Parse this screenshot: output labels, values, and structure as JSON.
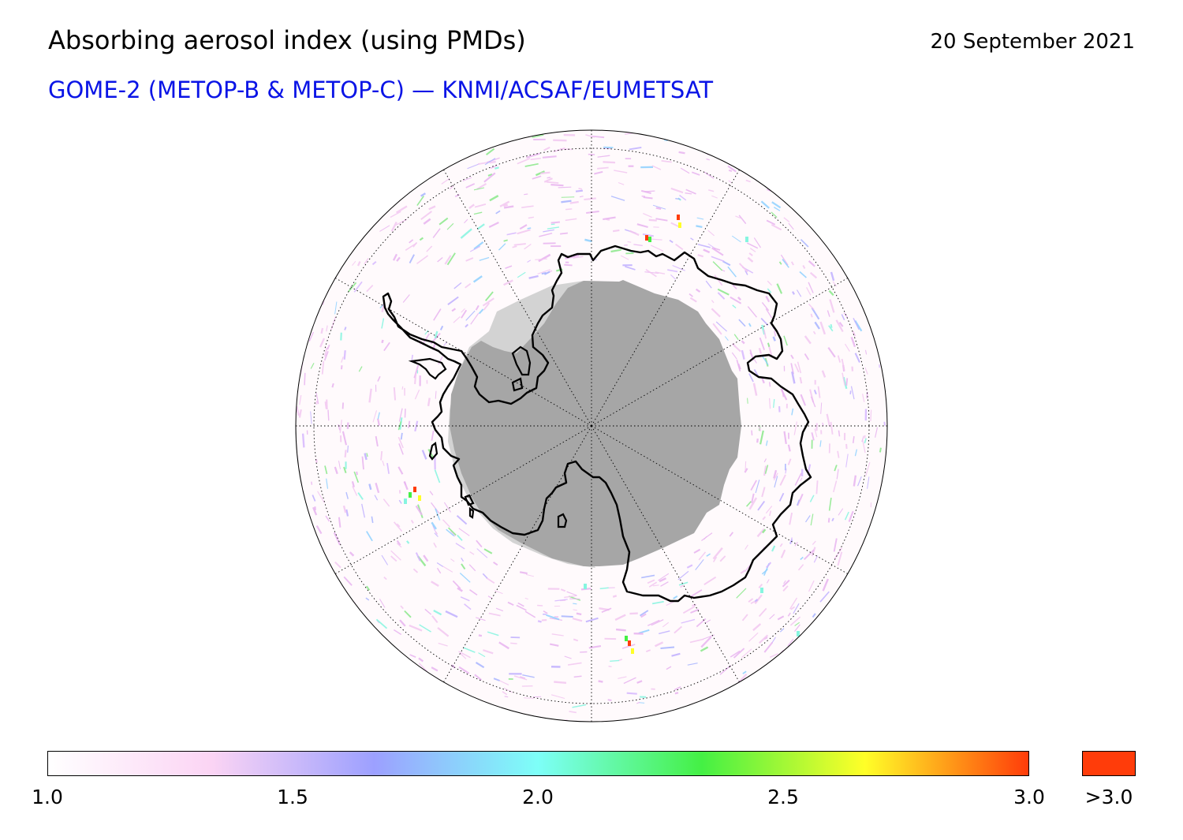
{
  "header": {
    "title": "Absorbing aerosol index (using PMDs)",
    "date": "20 September 2021",
    "subtitle": "GOME-2 (METOP-B & METOP-C) — KNMI/ACSAF/EUMETSAT"
  },
  "colorbar": {
    "min": 1.0,
    "max": 3.0,
    "ticks": [
      "1.0",
      "1.5",
      "2.0",
      "2.5",
      "3.0"
    ],
    "over_label": ">3.0",
    "over_color": "#ff3c0a",
    "stops": [
      "#ffffff",
      "#fbd4f4",
      "#9ca0ff",
      "#7dfff8",
      "#44f044",
      "#ffff28",
      "#ff3c0a"
    ]
  },
  "map": {
    "projection": "south polar stereographic",
    "graticule": "dotted",
    "land_outline_color": "#000000",
    "no_data_color": "#a6a6a6",
    "polar_night_color": "#d3d3d3"
  }
}
